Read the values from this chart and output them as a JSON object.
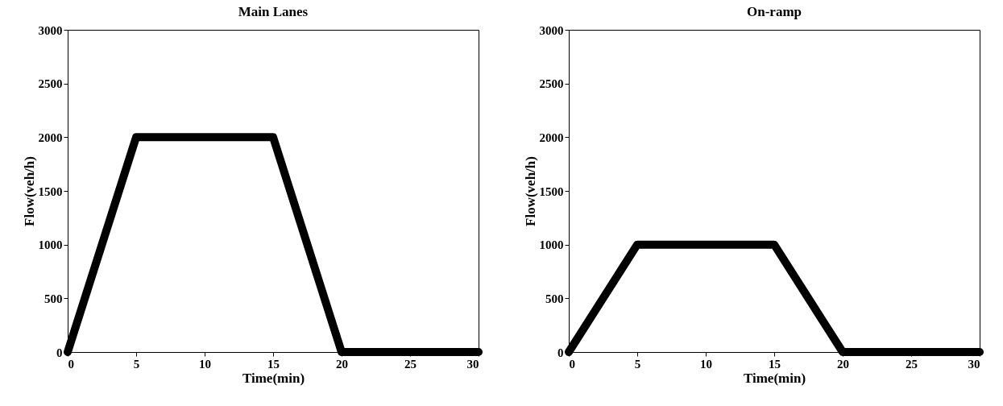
{
  "chart_data": [
    {
      "type": "line",
      "title": "Main Lanes",
      "xlabel": "Time(min)",
      "ylabel": "Flow(veh/h)",
      "x": [
        0,
        5,
        15,
        20,
        30
      ],
      "series": [
        {
          "color": "#000000",
          "values": [
            0,
            2000,
            2000,
            0,
            0
          ]
        }
      ],
      "xlim": [
        0,
        30
      ],
      "ylim": [
        0,
        3000
      ],
      "xticks": [
        0,
        5,
        10,
        15,
        20,
        25,
        30
      ],
      "yticks": [
        0,
        500,
        1000,
        1500,
        2000,
        2500,
        3000
      ]
    },
    {
      "type": "line",
      "title": "On-ramp",
      "xlabel": "Time(min)",
      "ylabel": "Flow(veh/h)",
      "x": [
        0,
        5,
        15,
        20,
        30
      ],
      "series": [
        {
          "color": "#000000",
          "values": [
            0,
            1000,
            1000,
            0,
            0
          ]
        }
      ],
      "xlim": [
        0,
        30
      ],
      "ylim": [
        0,
        3000
      ],
      "xticks": [
        0,
        5,
        10,
        15,
        20,
        25,
        30
      ],
      "yticks": [
        0,
        500,
        1000,
        1500,
        2000,
        2500,
        3000
      ]
    }
  ]
}
